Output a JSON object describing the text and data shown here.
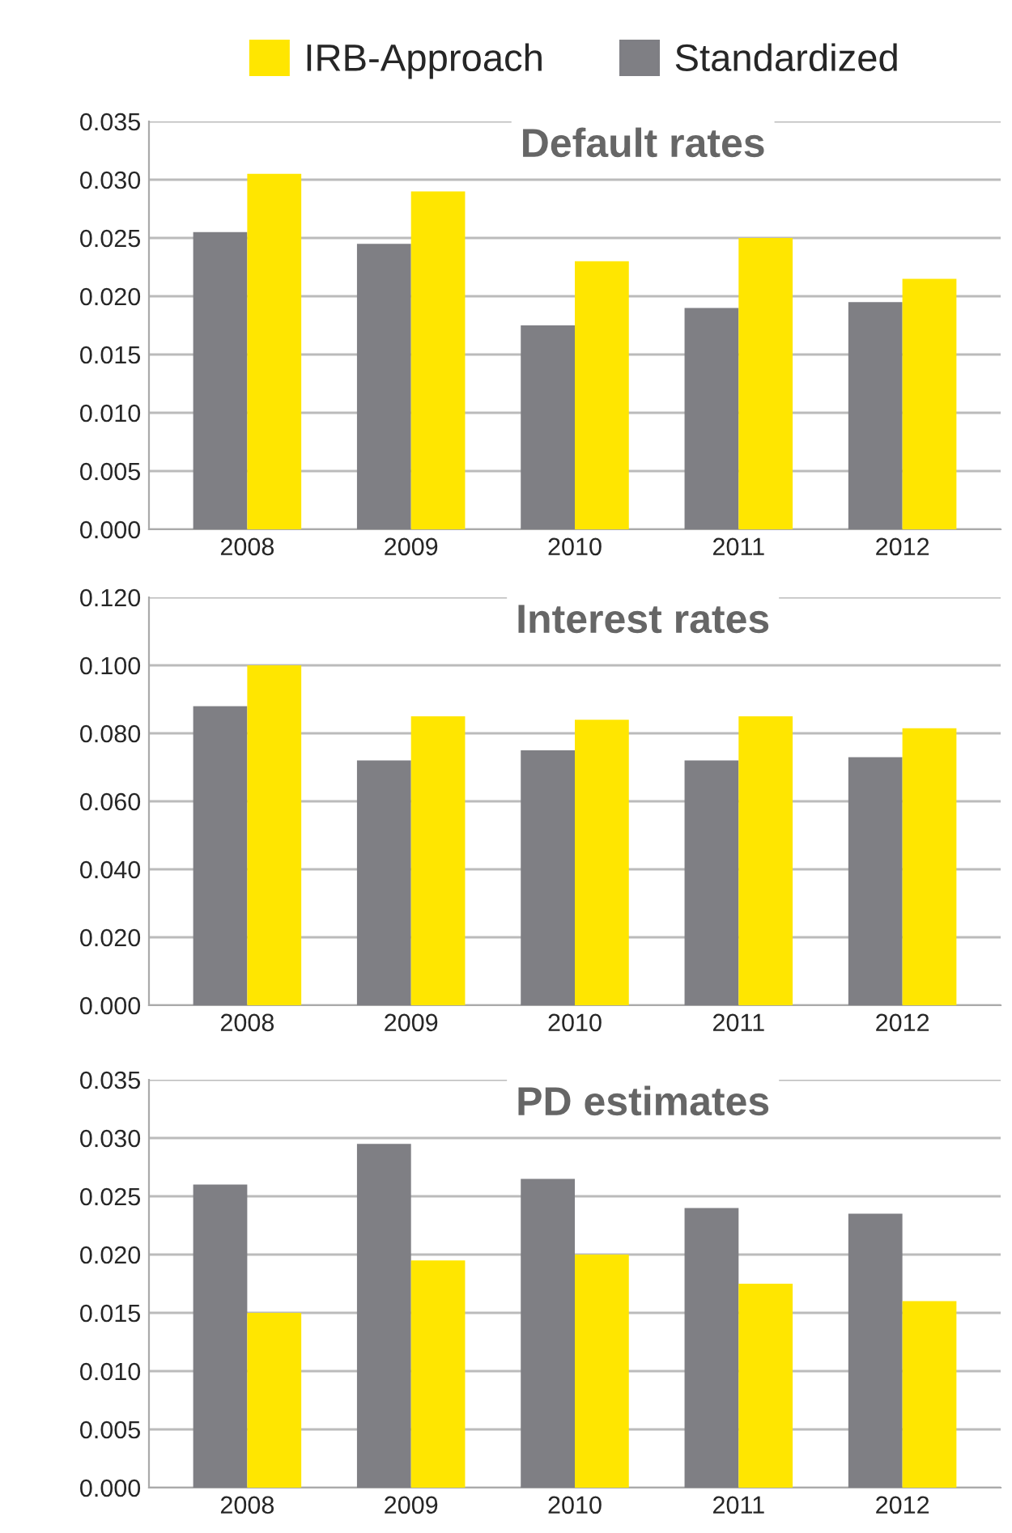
{
  "chart_data": [
    {
      "type": "bar",
      "title": "Default rates",
      "categories": [
        "2008",
        "2009",
        "2010",
        "2011",
        "2012"
      ],
      "series": [
        {
          "name": "Standardized",
          "color": "#7f7f84",
          "values": [
            0.0255,
            0.0245,
            0.0175,
            0.019,
            0.0195
          ]
        },
        {
          "name": "IRB-Approach",
          "color": "#ffe600",
          "values": [
            0.0305,
            0.029,
            0.023,
            0.025,
            0.0215
          ]
        }
      ],
      "ylim": [
        0,
        0.035
      ],
      "yticks": [
        {
          "value": 0,
          "label": "0.000"
        },
        {
          "value": 0.005,
          "label": "0.005"
        },
        {
          "value": 0.01,
          "label": "0.010"
        },
        {
          "value": 0.015,
          "label": "0.015"
        },
        {
          "value": 0.02,
          "label": "0.020"
        },
        {
          "value": 0.025,
          "label": "0.025"
        },
        {
          "value": 0.03,
          "label": "0.030"
        },
        {
          "value": 0.035,
          "label": "0.035"
        }
      ],
      "grid": "y",
      "legend": "top"
    },
    {
      "type": "bar",
      "title": "Interest rates",
      "categories": [
        "2008",
        "2009",
        "2010",
        "2011",
        "2012"
      ],
      "series": [
        {
          "color": "#7f7f84",
          "values": [
            0.088,
            0.072,
            0.075,
            0.072,
            0.073
          ]
        },
        {
          "color": "#ffe600",
          "values": [
            0.1,
            0.085,
            0.084,
            0.085,
            0.0815
          ]
        }
      ],
      "ylim": [
        0,
        0.12
      ],
      "yticks": [
        {
          "value": 0,
          "label": "0.000"
        },
        {
          "value": 0.02,
          "label": "0.020"
        },
        {
          "value": 0.04,
          "label": "0.040"
        },
        {
          "value": 0.06,
          "label": "0.060"
        },
        {
          "value": 0.08,
          "label": "0.080"
        },
        {
          "value": 0.1,
          "label": "0.100"
        },
        {
          "value": 0.12,
          "label": "0.120"
        }
      ],
      "grid": "y"
    },
    {
      "type": "bar",
      "title": "PD estimates",
      "categories": [
        "2008",
        "2009",
        "2010",
        "2011",
        "2012"
      ],
      "series": [
        {
          "color": "#7f7f84",
          "values": [
            0.026,
            0.0295,
            0.0265,
            0.024,
            0.0235
          ]
        },
        {
          "color": "#ffe600",
          "values": [
            0.015,
            0.0195,
            0.02,
            0.0175,
            0.016
          ]
        }
      ],
      "ylim": [
        0,
        0.035
      ],
      "yticks": [
        {
          "value": 0,
          "label": "0.000"
        },
        {
          "value": 0.005,
          "label": "0.005"
        },
        {
          "value": 0.01,
          "label": "0.010"
        },
        {
          "value": 0.015,
          "label": "0.015"
        },
        {
          "value": 0.02,
          "label": "0.020"
        },
        {
          "value": 0.025,
          "label": "0.025"
        },
        {
          "value": 0.03,
          "label": "0.030"
        },
        {
          "value": 0.035,
          "label": "0.035"
        }
      ],
      "grid": "y"
    }
  ]
}
